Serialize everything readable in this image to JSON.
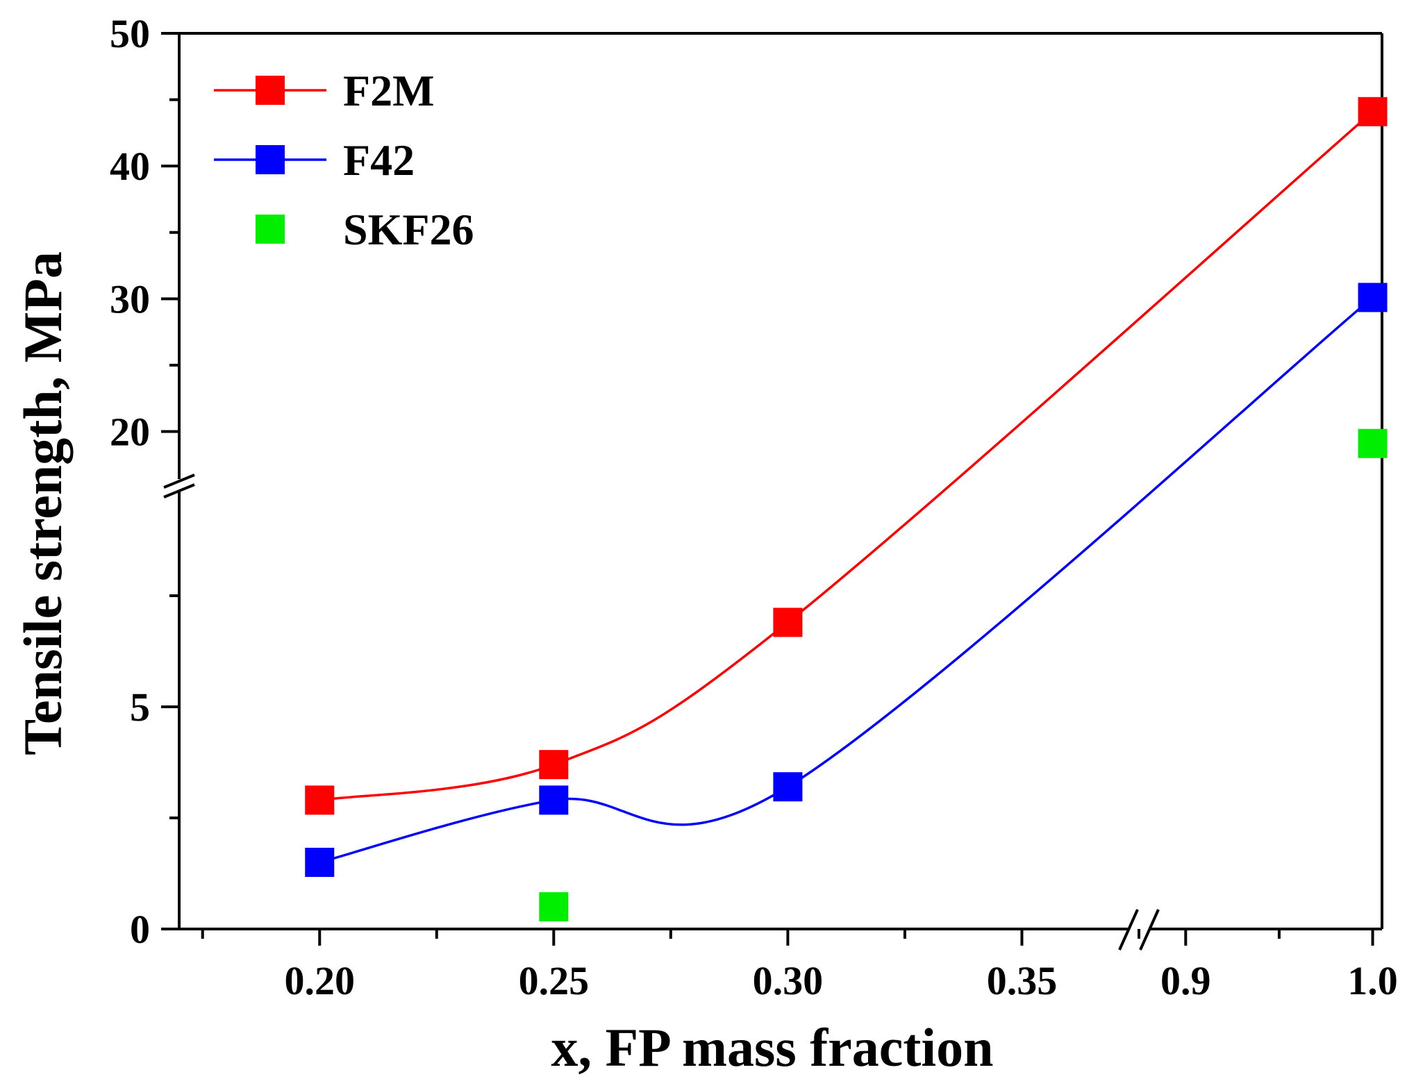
{
  "chart_data": {
    "type": "scatter",
    "xlabel": "x, FP mass fraction",
    "ylabel": "Tensile strength, MPa",
    "x_segments": [
      {
        "range": [
          0.17,
          0.375
        ],
        "ticks": [
          0.2,
          0.25,
          0.3,
          0.35
        ],
        "tick_labels": [
          "0.20",
          "0.25",
          "0.30",
          "0.35"
        ]
      },
      {
        "range": [
          0.875,
          1.005
        ],
        "ticks": [
          0.9,
          1.0
        ],
        "tick_labels": [
          "0.9",
          "1.0"
        ]
      }
    ],
    "y_segments": [
      {
        "range": [
          0,
          10
        ],
        "ticks": [
          0,
          5
        ],
        "tick_labels": [
          "0",
          "5"
        ]
      },
      {
        "range": [
          16,
          50
        ],
        "ticks": [
          20,
          30,
          40,
          50
        ],
        "tick_labels": [
          "20",
          "30",
          "40",
          "50"
        ]
      }
    ],
    "legend_position": "top-left",
    "series": [
      {
        "name": "F2M",
        "color": "#ff0000",
        "marker": "square",
        "line": true,
        "points": [
          [
            0.2,
            2.9
          ],
          [
            0.25,
            3.7
          ],
          [
            0.3,
            6.9
          ],
          [
            1.0,
            44.1
          ]
        ]
      },
      {
        "name": "F42",
        "color": "#0000ff",
        "marker": "square",
        "line": true,
        "points": [
          [
            0.2,
            1.5
          ],
          [
            0.25,
            2.9
          ],
          [
            0.3,
            3.2
          ],
          [
            1.0,
            30.1
          ]
        ]
      },
      {
        "name": "SKF26",
        "color": "#00ee00",
        "marker": "square",
        "line": false,
        "points": [
          [
            0.25,
            0.5
          ],
          [
            1.0,
            19.1
          ]
        ]
      }
    ]
  }
}
